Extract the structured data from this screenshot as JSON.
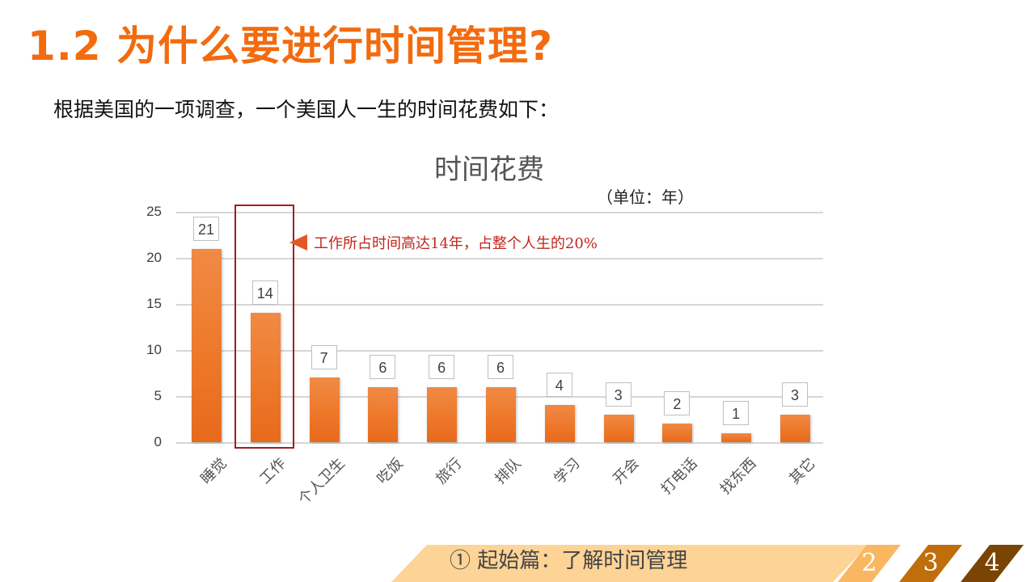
{
  "header": {
    "title": "1.2  为什么要进行时间管理?",
    "subtitle": "根据美国的一项调查，一个美国人一生的时间花费如下："
  },
  "annotation": {
    "text": "工作所占时间高达14年，占整个人生的20%",
    "highlighted_category": "工作"
  },
  "chart_data": {
    "type": "bar",
    "title": "时间花费",
    "subtitle": "（单位：年）",
    "categories": [
      "睡觉",
      "工作",
      "个人卫生",
      "吃饭",
      "旅行",
      "排队",
      "学习",
      "开会",
      "打电话",
      "找东西",
      "其它"
    ],
    "values": [
      21,
      14,
      7,
      6,
      6,
      6,
      4,
      3,
      2,
      1,
      3
    ],
    "xlabel": "",
    "ylabel": "",
    "ylim": [
      0,
      25
    ],
    "yticks": [
      0,
      5,
      10,
      15,
      20,
      25
    ],
    "grid": true,
    "legend": null,
    "data_labels": true,
    "bar_color": "#ee7a2c"
  },
  "footer": {
    "section_label": "①  起始篇：了解时间管理",
    "pages": [
      {
        "label": "2",
        "color": "#f9b762"
      },
      {
        "label": "3",
        "color": "#c06d0c"
      },
      {
        "label": "4",
        "color": "#7a4504"
      }
    ],
    "section_color": "#fdd396"
  },
  "colors": {
    "title": "#f26b0f",
    "annotation": "#c0261b",
    "highlight_border": "#a51c1c"
  }
}
